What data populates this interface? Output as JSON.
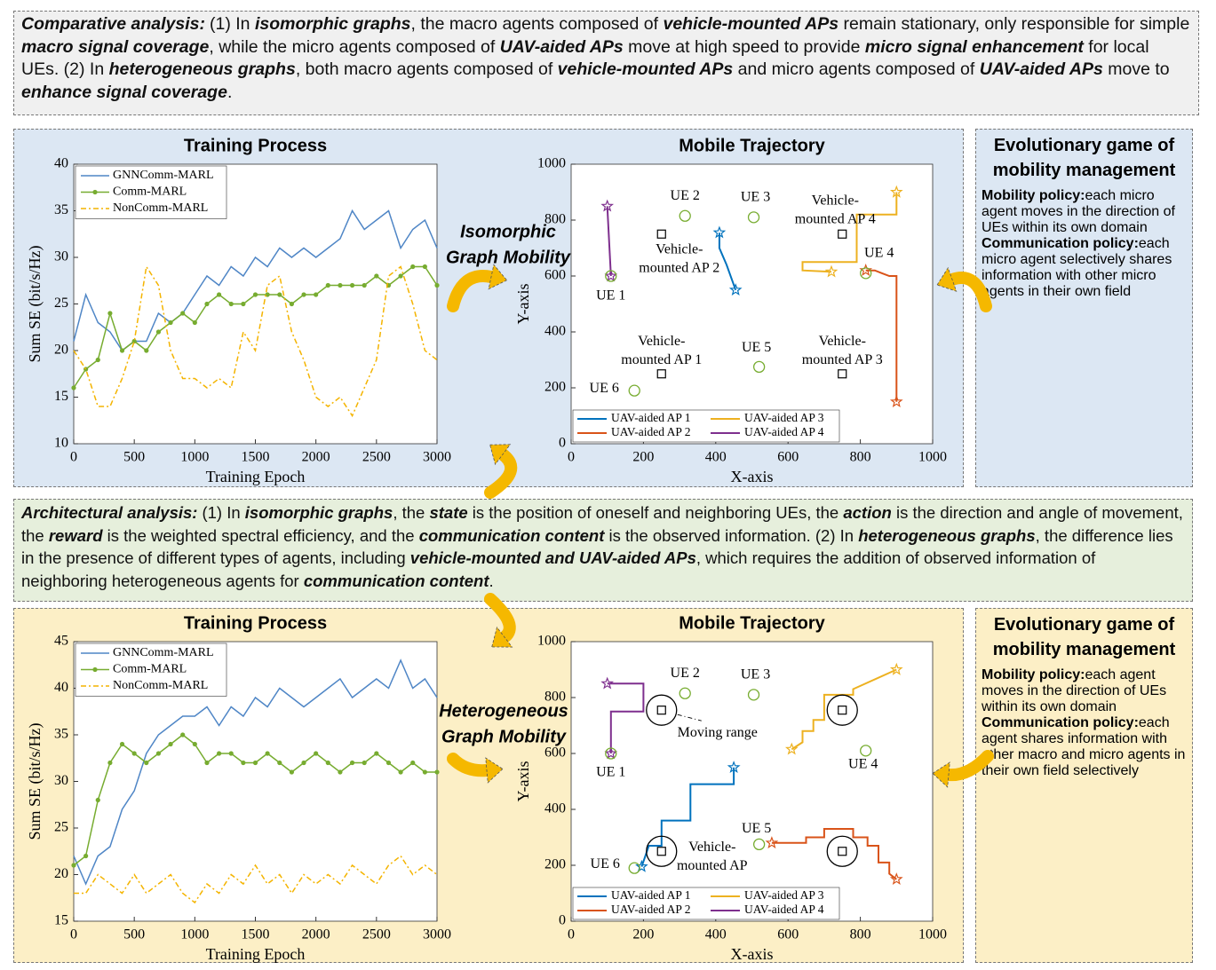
{
  "comparative": {
    "lead": "Comparative analysis:",
    "parts": [
      {
        "text": "(1) In "
      },
      {
        "text": "isomorphic graphs",
        "bold": true
      },
      {
        "text": ", the macro agents composed of "
      },
      {
        "text": "vehicle-mounted APs",
        "bold": true
      },
      {
        "text": " remain stationary, only responsible for simple "
      },
      {
        "text": "macro signal coverage",
        "bold": true
      },
      {
        "text": ", while the micro agents composed of "
      },
      {
        "text": "UAV-aided APs",
        "bold": true
      },
      {
        "text": " move at high speed to provide "
      },
      {
        "text": "micro signal enhancement",
        "bold": true
      },
      {
        "text": " for local UEs. (2) In "
      },
      {
        "text": "heterogeneous graphs",
        "bold": true
      },
      {
        "text": ", both macro agents composed of "
      },
      {
        "text": "vehicle-mounted APs",
        "bold": true
      },
      {
        "text": " and micro agents composed of "
      },
      {
        "text": "UAV-aided APs",
        "bold": true
      },
      {
        "text": " move to "
      },
      {
        "text": "enhance signal coverage",
        "bold": true
      },
      {
        "text": "."
      }
    ]
  },
  "architectural": {
    "lead": "Architectural analysis:",
    "parts": [
      {
        "text": "(1) In "
      },
      {
        "text": "isomorphic graphs",
        "bold": true
      },
      {
        "text": ", the "
      },
      {
        "text": "state",
        "bold": true
      },
      {
        "text": " is the position of oneself and neighboring UEs, the "
      },
      {
        "text": "action",
        "bold": true
      },
      {
        "text": " is the direction and angle of movement, the "
      },
      {
        "text": "reward",
        "bold": true
      },
      {
        "text": " is the weighted spectral efficiency, and the "
      },
      {
        "text": "communication content",
        "bold": true
      },
      {
        "text": " is the observed information. (2) In "
      },
      {
        "text": "heterogeneous graphs",
        "bold": true
      },
      {
        "text": ", the difference lies in the presence of different types of agents, including "
      },
      {
        "text": "vehicle-mounted",
        "bold": true
      },
      {
        "text": " and ",
        "bold": true
      },
      {
        "text": "UAV-aided APs",
        "bold": true
      },
      {
        "text": ", which requires the addition of observed information of neighboring heterogeneous agents for "
      },
      {
        "text": "communication content",
        "bold": true
      },
      {
        "text": "."
      }
    ]
  },
  "mobility_labels": [
    [
      "Isomorphic",
      "Graph Mobility"
    ],
    [
      "Heterogeneous",
      "Graph Mobility"
    ]
  ],
  "side_boxes": [
    {
      "title": "Evolutionary game of mobility management",
      "bullets": [
        {
          "lead": "Mobility policy:",
          "text": "each micro agent moves in the direction of UEs within its own domain"
        },
        {
          "lead": "Communication policy:",
          "text": "each micro agent selectively shares information with other micro agents in their own field"
        }
      ]
    },
    {
      "title": "Evolutionary game of mobility management",
      "bullets": [
        {
          "lead": "Mobility policy:",
          "text": "each agent moves in the direction of UEs within its own domain"
        },
        {
          "lead": "Communication policy:",
          "text": "each agent shares information with other macro and micro agents in their own field selectively"
        }
      ]
    }
  ],
  "chart_data": [
    {
      "type": "line",
      "title": "Training Process",
      "xlabel": "Training Epoch",
      "ylabel": "Sum SE (bit/s/Hz)",
      "xlim": [
        0,
        3000
      ],
      "xticks": [
        0,
        500,
        1000,
        1500,
        2000,
        2500,
        3000
      ],
      "ylim": [
        10,
        40
      ],
      "yticks": [
        10,
        15,
        20,
        25,
        30,
        35,
        40
      ],
      "legend": "upper left",
      "x": [
        0,
        100,
        200,
        300,
        400,
        500,
        600,
        700,
        800,
        900,
        1000,
        1100,
        1200,
        1300,
        1400,
        1500,
        1600,
        1700,
        1800,
        1900,
        2000,
        2100,
        2200,
        2300,
        2400,
        2500,
        2600,
        2700,
        2800,
        2900,
        3000
      ],
      "series": [
        {
          "name": "GNNComm-MARL",
          "color": "#4f86c6",
          "values": [
            21,
            26,
            23,
            22,
            20,
            21,
            21,
            24,
            23,
            24,
            26,
            28,
            27,
            29,
            28,
            30,
            29,
            31,
            30,
            31,
            30,
            31,
            32,
            35,
            33,
            34,
            35,
            31,
            33,
            34,
            31
          ]
        },
        {
          "name": "Comm-MARL",
          "color": "#77ac30",
          "marker": "o",
          "values": [
            16,
            18,
            19,
            24,
            20,
            21,
            20,
            22,
            23,
            24,
            23,
            25,
            26,
            25,
            25,
            26,
            26,
            26,
            25,
            26,
            26,
            27,
            27,
            27,
            27,
            28,
            27,
            28,
            29,
            29,
            27
          ]
        },
        {
          "name": "NonComm-MARL",
          "color": "#f4b400",
          "linestyle": "dashed",
          "values": [
            20,
            18,
            14,
            14,
            17,
            21,
            29,
            27,
            20,
            17,
            17,
            16,
            17,
            16,
            22,
            20,
            27,
            28,
            22,
            19,
            15,
            14,
            15,
            13,
            16,
            19,
            28,
            29,
            25,
            20,
            19
          ]
        }
      ]
    },
    {
      "type": "trajectory",
      "title": "Mobile Trajectory",
      "xlabel": "X-axis",
      "ylabel": "Y-axis",
      "xlim": [
        0,
        1000
      ],
      "xticks": [
        0,
        200,
        400,
        600,
        800,
        1000
      ],
      "ylim": [
        0,
        1000
      ],
      "yticks": [
        0,
        200,
        400,
        600,
        800,
        1000
      ],
      "legend": "lower left",
      "ues": [
        {
          "label": "UE 1",
          "x": 110,
          "y": 600
        },
        {
          "label": "UE 2",
          "x": 315,
          "y": 815
        },
        {
          "label": "UE 3",
          "x": 505,
          "y": 810
        },
        {
          "label": "UE 4",
          "x": 815,
          "y": 610
        },
        {
          "label": "UE 5",
          "x": 520,
          "y": 275
        },
        {
          "label": "UE 6",
          "x": 175,
          "y": 190
        }
      ],
      "aps": [
        {
          "label": [
            "Vehicle-",
            "mounted AP 1"
          ],
          "x": 250,
          "y": 250
        },
        {
          "label": [
            "Vehicle-",
            "mounted AP 2"
          ],
          "x": 250,
          "y": 750
        },
        {
          "label": [
            "Vehicle-",
            "mounted AP 3"
          ],
          "x": 750,
          "y": 250
        },
        {
          "label": [
            "Vehicle-",
            "mounted AP 4"
          ],
          "x": 750,
          "y": 750
        }
      ],
      "series": [
        {
          "name": "UAV-aided AP 1",
          "color": "#0072bd",
          "x": [
            410,
            410,
            430,
            455
          ],
          "y": [
            755,
            700,
            640,
            550
          ]
        },
        {
          "name": "UAV-aided AP 2",
          "color": "#d95319",
          "x": [
            900,
            900,
            880,
            860,
            840,
            815
          ],
          "y": [
            150,
            600,
            600,
            610,
            620,
            620
          ]
        },
        {
          "name": "UAV-aided AP 3",
          "color": "#edb120",
          "x": [
            900,
            900,
            790,
            790,
            640,
            640,
            720
          ],
          "y": [
            900,
            820,
            820,
            650,
            650,
            620,
            615
          ]
        },
        {
          "name": "UAV-aided AP 4",
          "color": "#7e2f8e",
          "x": [
            100,
            110
          ],
          "y": [
            850,
            600
          ]
        }
      ]
    },
    {
      "type": "line",
      "title": "Training Process",
      "xlabel": "Training Epoch",
      "ylabel": "Sum SE (bit/s/Hz)",
      "xlim": [
        0,
        3000
      ],
      "xticks": [
        0,
        500,
        1000,
        1500,
        2000,
        2500,
        3000
      ],
      "ylim": [
        15,
        45
      ],
      "yticks": [
        15,
        20,
        25,
        30,
        35,
        40,
        45
      ],
      "legend": "upper left",
      "x": [
        0,
        100,
        200,
        300,
        400,
        500,
        600,
        700,
        800,
        900,
        1000,
        1100,
        1200,
        1300,
        1400,
        1500,
        1600,
        1700,
        1800,
        1900,
        2000,
        2100,
        2200,
        2300,
        2400,
        2500,
        2600,
        2700,
        2800,
        2900,
        3000
      ],
      "series": [
        {
          "name": "GNNComm-MARL",
          "color": "#4f86c6",
          "values": [
            22,
            19,
            22,
            23,
            27,
            29,
            33,
            35,
            36,
            37,
            37,
            38,
            36,
            38,
            37,
            39,
            38,
            40,
            39,
            38,
            39,
            40,
            41,
            39,
            40,
            41,
            40,
            43,
            40,
            41,
            39
          ]
        },
        {
          "name": "Comm-MARL",
          "color": "#77ac30",
          "marker": "o",
          "values": [
            21,
            22,
            28,
            32,
            34,
            33,
            32,
            33,
            34,
            35,
            34,
            32,
            33,
            33,
            32,
            32,
            33,
            32,
            31,
            32,
            33,
            32,
            31,
            32,
            32,
            33,
            32,
            31,
            32,
            31,
            31
          ]
        },
        {
          "name": "NonComm-MARL",
          "color": "#f4b400",
          "linestyle": "dashed",
          "values": [
            18,
            18,
            20,
            19,
            18,
            20,
            18,
            19,
            20,
            18,
            17,
            19,
            18,
            20,
            19,
            21,
            19,
            20,
            18,
            20,
            19,
            20,
            19,
            21,
            20,
            19,
            21,
            22,
            20,
            21,
            20
          ]
        }
      ]
    },
    {
      "type": "trajectory",
      "title": "Mobile Trajectory",
      "xlabel": "X-axis",
      "ylabel": "Y-axis",
      "xlim": [
        0,
        1000
      ],
      "xticks": [
        0,
        200,
        400,
        600,
        800,
        1000
      ],
      "ylim": [
        0,
        1000
      ],
      "yticks": [
        0,
        200,
        400,
        600,
        800,
        1000
      ],
      "legend": "lower left",
      "moving_range": true,
      "annotation": "Moving range",
      "ues": [
        {
          "label": "UE 1",
          "x": 110,
          "y": 600
        },
        {
          "label": "UE 2",
          "x": 315,
          "y": 815
        },
        {
          "label": "UE 3",
          "x": 505,
          "y": 810
        },
        {
          "label": "UE 4",
          "x": 815,
          "y": 610
        },
        {
          "label": "UE 5",
          "x": 520,
          "y": 275
        },
        {
          "label": "UE 6",
          "x": 175,
          "y": 190
        }
      ],
      "aps": [
        {
          "label": [
            "Vehicle-",
            "mounted AP"
          ],
          "x": 250,
          "y": 250
        },
        {
          "x": 250,
          "y": 755
        },
        {
          "x": 750,
          "y": 250
        },
        {
          "x": 750,
          "y": 755
        }
      ],
      "series": [
        {
          "name": "UAV-aided AP 1",
          "color": "#0072bd",
          "x": [
            450,
            450,
            330,
            330,
            250,
            250,
            215,
            195
          ],
          "y": [
            550,
            490,
            490,
            360,
            360,
            270,
            270,
            195
          ]
        },
        {
          "name": "UAV-aided AP 2",
          "color": "#d95319",
          "x": [
            900,
            880,
            880,
            850,
            850,
            820,
            820,
            780,
            780,
            700,
            700,
            650,
            650,
            555
          ],
          "y": [
            150,
            170,
            210,
            210,
            270,
            270,
            300,
            300,
            330,
            330,
            300,
            300,
            280,
            280
          ]
        },
        {
          "name": "UAV-aided AP 3",
          "color": "#edb120",
          "x": [
            900,
            780,
            780,
            700,
            700,
            670,
            670,
            640,
            640,
            610
          ],
          "y": [
            900,
            830,
            810,
            810,
            720,
            720,
            680,
            680,
            640,
            615
          ]
        },
        {
          "name": "UAV-aided AP 4",
          "color": "#7e2f8e",
          "x": [
            100,
            200,
            200,
            110,
            110
          ],
          "y": [
            850,
            850,
            750,
            750,
            600
          ]
        }
      ]
    }
  ]
}
